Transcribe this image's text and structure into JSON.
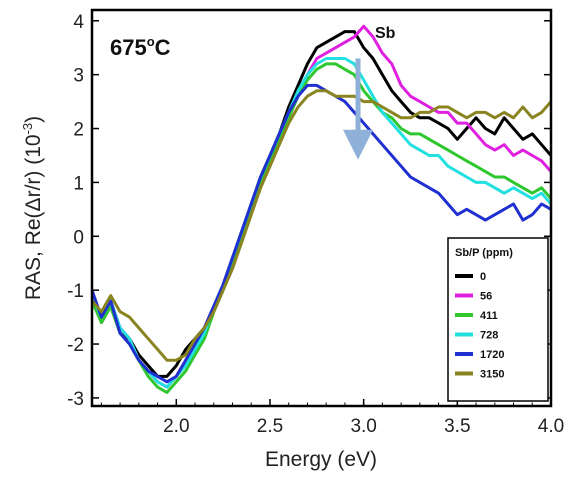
{
  "chart_data": {
    "type": "line",
    "xlabel": "Energy (eV)",
    "ylabel": {
      "prefix": "RAS, Re(",
      "delta": "Δ",
      "mid": "r/r)  (10",
      "exp": "-3",
      "suffix": ")"
    },
    "xlim": [
      1.55,
      4.0
    ],
    "ylim": [
      -3.15,
      4.2
    ],
    "xticks": [
      "2.0",
      "2.5",
      "3.0",
      "3.5",
      "4.0"
    ],
    "xtick_values": [
      2.0,
      2.5,
      3.0,
      3.5,
      4.0
    ],
    "yticks": [
      "-3",
      "-2",
      "-1",
      "0",
      "1",
      "2",
      "3",
      "4"
    ],
    "ytick_values": [
      -3,
      -2,
      -1,
      0,
      1,
      2,
      3,
      4
    ],
    "grid": false,
    "annotations": {
      "temperature": {
        "value": "675",
        "deg": "o",
        "unit": "C"
      },
      "peak_label": "Sb",
      "arrow": {
        "x": 2.97,
        "y_from": 3.3,
        "y_to": 1.7,
        "color": "#8fb0d8"
      }
    },
    "legend": {
      "title": "Sb/P (ppm)",
      "position": "lower-right"
    },
    "series": [
      {
        "name": "0",
        "color": "#000000",
        "x": [
          1.55,
          1.6,
          1.65,
          1.7,
          1.75,
          1.8,
          1.85,
          1.9,
          1.95,
          2.0,
          2.05,
          2.1,
          2.15,
          2.2,
          2.25,
          2.3,
          2.35,
          2.4,
          2.45,
          2.5,
          2.55,
          2.6,
          2.65,
          2.7,
          2.75,
          2.8,
          2.85,
          2.9,
          2.95,
          3.0,
          3.05,
          3.1,
          3.15,
          3.2,
          3.25,
          3.3,
          3.35,
          3.4,
          3.45,
          3.5,
          3.55,
          3.6,
          3.65,
          3.7,
          3.75,
          3.8,
          3.85,
          3.9,
          3.95,
          4.0
        ],
        "y": [
          -1.0,
          -1.6,
          -1.3,
          -1.8,
          -1.9,
          -2.2,
          -2.4,
          -2.6,
          -2.6,
          -2.4,
          -2.1,
          -1.9,
          -1.7,
          -1.3,
          -0.9,
          -0.4,
          0.1,
          0.6,
          1.1,
          1.5,
          1.9,
          2.4,
          2.8,
          3.2,
          3.5,
          3.6,
          3.7,
          3.8,
          3.8,
          3.5,
          3.3,
          3.0,
          2.7,
          2.5,
          2.3,
          2.2,
          2.2,
          2.1,
          2.0,
          1.8,
          2.0,
          2.2,
          2.0,
          1.9,
          2.2,
          2.0,
          1.8,
          1.9,
          1.7,
          1.5
        ]
      },
      {
        "name": "56",
        "color": "#e020e0",
        "x": [
          1.55,
          1.6,
          1.65,
          1.7,
          1.75,
          1.8,
          1.85,
          1.9,
          1.95,
          2.0,
          2.05,
          2.1,
          2.15,
          2.2,
          2.25,
          2.3,
          2.35,
          2.4,
          2.45,
          2.5,
          2.55,
          2.6,
          2.65,
          2.7,
          2.75,
          2.8,
          2.85,
          2.9,
          2.95,
          3.0,
          3.05,
          3.1,
          3.15,
          3.2,
          3.25,
          3.3,
          3.35,
          3.4,
          3.45,
          3.5,
          3.55,
          3.6,
          3.65,
          3.7,
          3.75,
          3.8,
          3.85,
          3.9,
          3.95,
          4.0
        ],
        "y": [
          -1.1,
          -1.5,
          -1.2,
          -1.7,
          -1.9,
          -2.3,
          -2.5,
          -2.7,
          -2.8,
          -2.6,
          -2.3,
          -2.0,
          -1.7,
          -1.3,
          -0.9,
          -0.4,
          0.1,
          0.6,
          1.1,
          1.5,
          1.8,
          2.2,
          2.6,
          3.0,
          3.3,
          3.4,
          3.5,
          3.6,
          3.7,
          3.9,
          3.7,
          3.4,
          3.2,
          2.8,
          2.6,
          2.5,
          2.4,
          2.3,
          2.3,
          2.1,
          2.1,
          1.9,
          1.7,
          1.6,
          1.7,
          1.5,
          1.6,
          1.5,
          1.4,
          1.2
        ]
      },
      {
        "name": "411",
        "color": "#2ec82e",
        "x": [
          1.55,
          1.6,
          1.65,
          1.7,
          1.75,
          1.8,
          1.85,
          1.9,
          1.95,
          2.0,
          2.05,
          2.1,
          2.15,
          2.2,
          2.25,
          2.3,
          2.35,
          2.4,
          2.45,
          2.5,
          2.55,
          2.6,
          2.65,
          2.7,
          2.75,
          2.8,
          2.85,
          2.9,
          2.95,
          3.0,
          3.05,
          3.1,
          3.15,
          3.2,
          3.25,
          3.3,
          3.35,
          3.4,
          3.45,
          3.5,
          3.55,
          3.6,
          3.65,
          3.7,
          3.75,
          3.8,
          3.85,
          3.9,
          3.95,
          4.0
        ],
        "y": [
          -1.2,
          -1.6,
          -1.3,
          -1.8,
          -2.0,
          -2.3,
          -2.6,
          -2.8,
          -2.9,
          -2.7,
          -2.5,
          -2.2,
          -1.9,
          -1.4,
          -1.0,
          -0.5,
          0.0,
          0.5,
          1.0,
          1.4,
          1.8,
          2.2,
          2.6,
          2.9,
          3.1,
          3.2,
          3.2,
          3.1,
          3.0,
          2.7,
          2.5,
          2.3,
          2.2,
          2.0,
          1.9,
          1.9,
          1.8,
          1.7,
          1.6,
          1.5,
          1.4,
          1.3,
          1.2,
          1.1,
          1.1,
          1.0,
          0.9,
          0.8,
          0.9,
          0.7
        ]
      },
      {
        "name": "728",
        "color": "#22e0e0",
        "x": [
          1.55,
          1.6,
          1.65,
          1.7,
          1.75,
          1.8,
          1.85,
          1.9,
          1.95,
          2.0,
          2.05,
          2.1,
          2.15,
          2.2,
          2.25,
          2.3,
          2.35,
          2.4,
          2.45,
          2.5,
          2.55,
          2.6,
          2.65,
          2.7,
          2.75,
          2.8,
          2.85,
          2.9,
          2.95,
          3.0,
          3.05,
          3.1,
          3.15,
          3.2,
          3.25,
          3.3,
          3.35,
          3.4,
          3.45,
          3.5,
          3.55,
          3.6,
          3.65,
          3.7,
          3.75,
          3.8,
          3.85,
          3.9,
          3.95,
          4.0
        ],
        "y": [
          -1.1,
          -1.5,
          -1.2,
          -1.7,
          -1.9,
          -2.3,
          -2.5,
          -2.7,
          -2.8,
          -2.6,
          -2.4,
          -2.1,
          -1.8,
          -1.3,
          -0.9,
          -0.4,
          0.1,
          0.6,
          1.1,
          1.5,
          1.9,
          2.3,
          2.7,
          3.0,
          3.2,
          3.3,
          3.3,
          3.3,
          3.2,
          2.9,
          2.6,
          2.3,
          2.1,
          1.9,
          1.7,
          1.6,
          1.5,
          1.5,
          1.3,
          1.2,
          1.1,
          1.0,
          1.0,
          0.9,
          0.8,
          0.9,
          0.8,
          0.7,
          0.8,
          0.6
        ]
      },
      {
        "name": "1720",
        "color": "#2030d0",
        "x": [
          1.55,
          1.6,
          1.65,
          1.7,
          1.75,
          1.8,
          1.85,
          1.9,
          1.95,
          2.0,
          2.05,
          2.1,
          2.15,
          2.2,
          2.25,
          2.3,
          2.35,
          2.4,
          2.45,
          2.5,
          2.55,
          2.6,
          2.65,
          2.7,
          2.75,
          2.8,
          2.85,
          2.9,
          2.95,
          3.0,
          3.05,
          3.1,
          3.15,
          3.2,
          3.25,
          3.3,
          3.35,
          3.4,
          3.45,
          3.5,
          3.55,
          3.6,
          3.65,
          3.7,
          3.75,
          3.8,
          3.85,
          3.9,
          3.95,
          4.0
        ],
        "y": [
          -1.0,
          -1.5,
          -1.2,
          -1.8,
          -2.0,
          -2.3,
          -2.5,
          -2.6,
          -2.7,
          -2.6,
          -2.3,
          -2.0,
          -1.7,
          -1.3,
          -0.9,
          -0.4,
          0.1,
          0.6,
          1.1,
          1.5,
          1.9,
          2.3,
          2.6,
          2.8,
          2.8,
          2.7,
          2.6,
          2.5,
          2.3,
          2.1,
          1.9,
          1.7,
          1.5,
          1.3,
          1.1,
          1.0,
          0.9,
          0.8,
          0.6,
          0.4,
          0.5,
          0.4,
          0.3,
          0.4,
          0.5,
          0.6,
          0.3,
          0.4,
          0.6,
          0.5
        ]
      },
      {
        "name": "3150",
        "color": "#8a8420",
        "x": [
          1.55,
          1.6,
          1.65,
          1.7,
          1.75,
          1.8,
          1.85,
          1.9,
          1.95,
          2.0,
          2.05,
          2.1,
          2.15,
          2.2,
          2.25,
          2.3,
          2.35,
          2.4,
          2.45,
          2.5,
          2.55,
          2.6,
          2.65,
          2.7,
          2.75,
          2.8,
          2.85,
          2.9,
          2.95,
          3.0,
          3.05,
          3.1,
          3.15,
          3.2,
          3.25,
          3.3,
          3.35,
          3.4,
          3.45,
          3.5,
          3.55,
          3.6,
          3.65,
          3.7,
          3.75,
          3.8,
          3.85,
          3.9,
          3.95,
          4.0
        ],
        "y": [
          -1.2,
          -1.4,
          -1.1,
          -1.4,
          -1.5,
          -1.7,
          -1.9,
          -2.1,
          -2.3,
          -2.3,
          -2.2,
          -1.9,
          -1.7,
          -1.4,
          -1.0,
          -0.6,
          -0.1,
          0.4,
          0.9,
          1.3,
          1.7,
          2.1,
          2.4,
          2.6,
          2.7,
          2.7,
          2.6,
          2.6,
          2.6,
          2.5,
          2.5,
          2.4,
          2.3,
          2.2,
          2.2,
          2.3,
          2.3,
          2.4,
          2.4,
          2.3,
          2.2,
          2.3,
          2.3,
          2.2,
          2.3,
          2.2,
          2.4,
          2.2,
          2.3,
          2.5
        ]
      }
    ]
  }
}
